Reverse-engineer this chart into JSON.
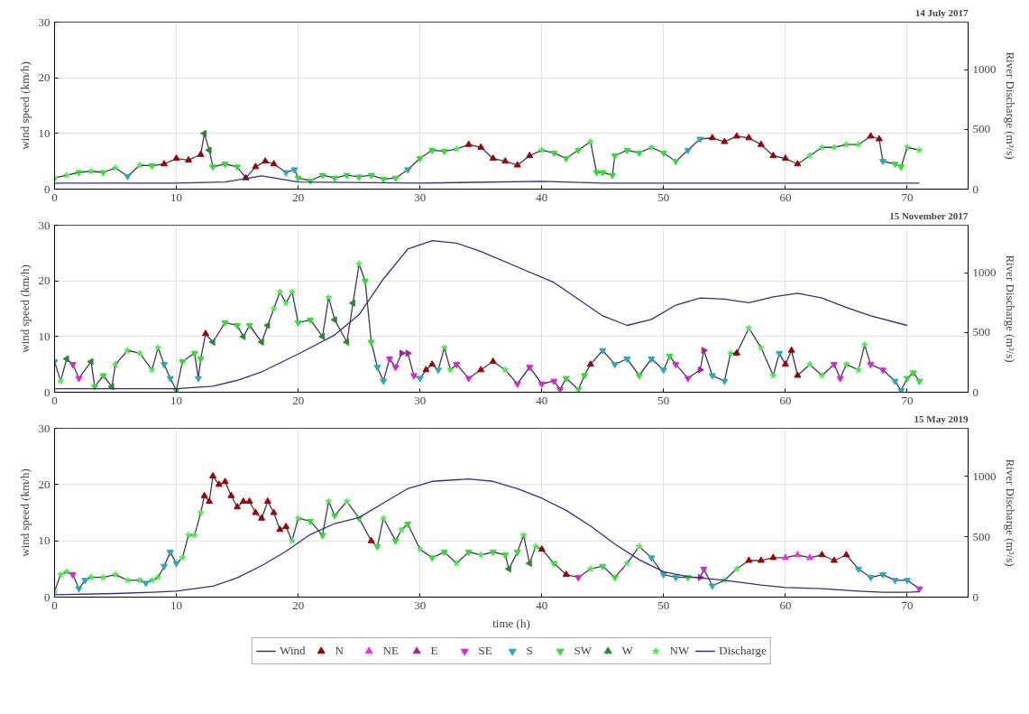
{
  "chart_data": [
    {
      "type": "line",
      "title": "14 July 2017",
      "ylabel": "wind speed (km/h)",
      "y2label": "River Discharge (m³/s)",
      "xlim": [
        0,
        75
      ],
      "xticks": [
        0,
        10,
        20,
        30,
        40,
        50,
        60,
        70
      ],
      "ylim": [
        0,
        30
      ],
      "yticks": [
        0,
        10,
        20,
        30
      ],
      "y2lim": [
        0,
        1400
      ],
      "y2ticks": [
        0,
        500,
        1000
      ],
      "grid": true,
      "series": [
        {
          "type": "line",
          "color": "#3a3a5a",
          "marker": "none",
          "x": [
            0,
            1,
            2,
            3,
            4,
            5,
            6,
            7,
            8,
            9,
            10,
            11,
            12,
            12.3,
            12.7,
            13,
            14,
            15,
            15.7,
            16.5,
            17.3,
            18,
            19,
            19.7,
            20,
            21,
            22,
            23,
            24,
            25,
            26,
            27,
            28,
            29,
            30,
            31,
            32,
            33,
            34,
            35,
            36,
            37,
            38,
            39,
            40,
            41,
            42,
            43,
            44,
            44.5,
            45,
            45.8,
            46,
            47,
            48,
            49,
            50,
            51,
            52,
            53,
            54,
            55,
            56,
            57,
            58,
            59,
            60,
            61,
            62,
            63,
            64,
            65,
            66,
            67,
            67.7,
            68,
            69,
            69.5,
            70,
            71
          ],
          "values": [
            2,
            2.5,
            3,
            3.2,
            3,
            3.8,
            2.3,
            4.3,
            4.2,
            4.5,
            5.5,
            5.2,
            6.2,
            10,
            7,
            4,
            4.5,
            4,
            2,
            4,
            5,
            4.5,
            3,
            3.5,
            2,
            1.5,
            2.5,
            2,
            2.5,
            2.2,
            2.5,
            1.8,
            2,
            3.5,
            5.5,
            7,
            6.8,
            7.2,
            8,
            7.5,
            5.5,
            5,
            4.3,
            6,
            7,
            6.5,
            5.5,
            7,
            8.5,
            3,
            3,
            2.5,
            6,
            7,
            6.5,
            7.5,
            6.5,
            5,
            7,
            9,
            9.2,
            8.5,
            9.5,
            9.2,
            8,
            6,
            5.5,
            4.5,
            6,
            7.5,
            7.5,
            8,
            8,
            9.5,
            9,
            5,
            4.5,
            4,
            7.5,
            7
          ]
        },
        {
          "type": "scatter",
          "color": "#a00000",
          "marker": "triangle",
          "x": [
            9,
            10,
            11,
            12,
            15.7,
            16.5,
            17.3,
            18,
            34,
            35,
            36,
            37,
            38,
            39,
            54,
            55,
            56,
            57,
            58,
            59,
            60,
            61,
            67,
            67.7
          ],
          "values": [
            4.5,
            5.5,
            5.2,
            6.2,
            2,
            4,
            5,
            4.5,
            8,
            7.5,
            5.5,
            5,
            4.3,
            6,
            9.2,
            8.5,
            9.5,
            9.2,
            8,
            6,
            5.5,
            4.5,
            9.5,
            9
          ]
        },
        {
          "type": "scatter",
          "color": "#2aa8b8",
          "marker": "triangle_down",
          "x": [
            6,
            19,
            19.7,
            29,
            52,
            53,
            68
          ],
          "values": [
            2.3,
            3,
            3.5,
            3.5,
            7,
            9,
            5
          ]
        },
        {
          "type": "scatter",
          "color": "#33dd33",
          "marker": "triangle_down",
          "x": [
            2,
            4,
            8,
            13,
            14,
            15,
            20,
            21,
            22,
            23,
            24,
            25,
            26,
            27,
            28,
            30,
            31,
            32,
            41,
            42,
            43,
            44.5,
            45,
            45.8,
            46,
            47,
            48,
            50,
            51,
            69,
            69.5
          ],
          "values": [
            3,
            3,
            4.2,
            4,
            4.5,
            4,
            2,
            1.5,
            2.5,
            2,
            2.5,
            2.2,
            2.5,
            1.8,
            2,
            5.5,
            7,
            6.8,
            6.5,
            5.5,
            7,
            3,
            3,
            2.5,
            6,
            7,
            6.5,
            6.5,
            5,
            4.5,
            4
          ]
        },
        {
          "type": "scatter",
          "color": "#2a8a2a",
          "marker": "triangle_left",
          "x": [
            12.3,
            12.7
          ],
          "values": [
            10,
            7
          ]
        },
        {
          "type": "scatter",
          "color": "#44ee44",
          "marker": "star",
          "x": [
            0,
            1,
            3,
            5,
            7,
            33,
            40,
            44,
            49,
            62,
            63,
            64,
            65,
            66,
            70,
            71
          ],
          "values": [
            2,
            2.5,
            3.2,
            3.8,
            4.3,
            7.2,
            7,
            8.5,
            7.5,
            6,
            7.5,
            7.5,
            8,
            8,
            7.5,
            7
          ]
        },
        {
          "type": "line",
          "color": "#2e2e8a",
          "marker": "none",
          "axis": "y2",
          "x": [
            0,
            10,
            14,
            17,
            20,
            30,
            40,
            45,
            71
          ],
          "values": [
            50,
            50,
            60,
            110,
            60,
            50,
            65,
            50,
            50
          ]
        }
      ]
    },
    {
      "type": "line",
      "title": "15 November 2017",
      "ylabel": "wind speed (km/h)",
      "y2label": "River Discharge (m³/s)",
      "xlim": [
        0,
        75
      ],
      "xticks": [
        0,
        10,
        20,
        30,
        40,
        50,
        60,
        70
      ],
      "ylim": [
        0,
        30
      ],
      "yticks": [
        0,
        10,
        20,
        30
      ],
      "y2lim": [
        0,
        1400
      ],
      "y2ticks": [
        0,
        500,
        1000
      ],
      "grid": true,
      "series": [
        {
          "type": "line",
          "color": "#3a3a5a",
          "marker": "none",
          "x": [
            0,
            0.5,
            1,
            1.5,
            2,
            3,
            3.3,
            4,
            4.7,
            5,
            6,
            7,
            8,
            8.5,
            9,
            9.5,
            10,
            10.5,
            11.5,
            11.8,
            12,
            12.4,
            13,
            14,
            15,
            15.5,
            16,
            17,
            17.5,
            18,
            18.5,
            19,
            19.5,
            20,
            21,
            22,
            22.5,
            23,
            24,
            24.5,
            25,
            25.5,
            26,
            26.5,
            27,
            27.5,
            28,
            28.5,
            29,
            29.5,
            30,
            30.5,
            31,
            31.5,
            32,
            32.5,
            33,
            34,
            35,
            36,
            37,
            38,
            39,
            40,
            41,
            41.5,
            42,
            43,
            43.5,
            44,
            45,
            46,
            47,
            48,
            49,
            50,
            50.5,
            51,
            52,
            53,
            53.3,
            54,
            55,
            55.5,
            56,
            57,
            58,
            59,
            59.5,
            60,
            60.5,
            61,
            62,
            63,
            64,
            64.5,
            65,
            66,
            66.5,
            67,
            68,
            69,
            69.5,
            70,
            70.5,
            71
          ],
          "values": [
            5.5,
            2,
            6,
            5,
            2.5,
            5.5,
            1,
            3,
            1,
            5,
            7.5,
            7,
            4,
            8,
            5,
            2.5,
            0.3,
            5.5,
            7,
            2.5,
            6,
            10.5,
            9,
            12.5,
            12,
            10,
            12,
            9,
            12,
            15,
            18,
            16,
            18,
            12.5,
            13,
            10,
            17,
            13,
            9,
            16,
            23,
            20,
            9,
            4.5,
            2,
            6,
            4.5,
            7,
            7,
            3,
            2.5,
            4,
            5,
            4,
            8,
            4,
            5,
            2.5,
            4,
            5.5,
            4,
            1.5,
            4.5,
            1.5,
            2,
            0.5,
            2.5,
            0.5,
            3,
            5,
            7.5,
            5,
            6,
            3,
            6,
            4,
            6.5,
            5,
            2.5,
            4,
            7.5,
            3,
            2,
            7,
            7,
            11.5,
            8,
            3,
            7,
            5,
            7.5,
            3,
            5,
            3,
            5,
            2.5,
            5,
            4,
            8.5,
            5,
            4,
            2,
            0.3,
            2.5,
            3.5,
            2
          ]
        },
        {
          "type": "scatter",
          "color": "#a00000",
          "marker": "triangle",
          "x": [
            12.4,
            30.5,
            31,
            35,
            36,
            44,
            56,
            60,
            60.5,
            61
          ],
          "values": [
            10.5,
            4,
            5,
            4,
            5.5,
            5,
            7,
            5,
            7.5,
            3
          ]
        },
        {
          "type": "scatter",
          "color": "#b0209a",
          "marker": "triangle_right",
          "x": [
            28.5,
            29,
            53,
            53.3
          ],
          "values": [
            7,
            7,
            4,
            7.5
          ]
        },
        {
          "type": "scatter",
          "color": "#dd22dd",
          "marker": "triangle_down",
          "x": [
            1.5,
            2,
            27.5,
            28,
            29.5,
            33,
            34,
            38,
            39,
            40,
            41,
            41.5,
            51,
            52,
            64,
            64.5,
            67,
            68
          ],
          "values": [
            5,
            2.5,
            6,
            4.5,
            3,
            5,
            2.5,
            1.5,
            4.5,
            1.5,
            2,
            0.5,
            5,
            2.5,
            5,
            2.5,
            5,
            4
          ]
        },
        {
          "type": "scatter",
          "color": "#2aa8b8",
          "marker": "triangle_down",
          "x": [
            0,
            9,
            9.5,
            11.8,
            26.5,
            27,
            30,
            31.5,
            45,
            46,
            47,
            49,
            50,
            54,
            55,
            59.5,
            69,
            69.5
          ],
          "values": [
            5.5,
            5,
            2.5,
            2.5,
            4.5,
            2,
            2.5,
            4,
            7.5,
            5,
            6,
            6,
            4,
            3,
            2,
            7,
            2,
            0.3
          ]
        },
        {
          "type": "scatter",
          "color": "#33dd33",
          "marker": "triangle_down",
          "x": [
            3.3,
            4,
            10,
            10.5,
            11.5,
            12,
            14,
            15,
            16,
            20,
            21,
            25.5,
            26,
            42,
            43,
            43.5,
            48,
            50.5,
            70,
            70.5,
            71
          ],
          "values": [
            1,
            3,
            0.3,
            5.5,
            7,
            6,
            12.5,
            12,
            12,
            12.5,
            13,
            20,
            9,
            2.5,
            0.5,
            3,
            3,
            6.5,
            2.5,
            3.5,
            2
          ]
        },
        {
          "type": "scatter",
          "color": "#2a8a2a",
          "marker": "triangle_left",
          "x": [
            1,
            3,
            4.7,
            13,
            15.5,
            17,
            17.5,
            22,
            23,
            24,
            24.5
          ],
          "values": [
            6,
            5.5,
            1,
            9,
            10,
            9,
            12,
            10,
            13,
            9,
            16
          ]
        },
        {
          "type": "scatter",
          "color": "#44ee44",
          "marker": "star",
          "x": [
            0.5,
            5,
            6,
            7,
            8,
            8.5,
            18,
            18.5,
            19,
            19.5,
            22.5,
            25,
            32,
            32.5,
            37,
            55.5,
            57,
            58,
            59,
            62,
            63,
            65,
            66,
            66.5
          ],
          "values": [
            2,
            5,
            7.5,
            7,
            4,
            8,
            15,
            18,
            16,
            18,
            17,
            23,
            8,
            4,
            4,
            7,
            11.5,
            8,
            3,
            5,
            3,
            5,
            4,
            8.5
          ]
        },
        {
          "type": "line",
          "color": "#2e2e8a",
          "marker": "none",
          "axis": "y2",
          "x": [
            0,
            10,
            13,
            15,
            17,
            20,
            23,
            25,
            27,
            29,
            31,
            33,
            35,
            38,
            41,
            43,
            45,
            47,
            49,
            51,
            53,
            55,
            57,
            59,
            61,
            63,
            65,
            67,
            70
          ],
          "values": [
            30,
            30,
            50,
            100,
            170,
            320,
            480,
            650,
            950,
            1200,
            1270,
            1250,
            1180,
            1050,
            920,
            780,
            640,
            560,
            610,
            730,
            790,
            780,
            750,
            800,
            830,
            790,
            710,
            640,
            560
          ]
        }
      ]
    },
    {
      "type": "line",
      "title": "15 May 2019",
      "xlabel": "time (h)",
      "ylabel": "wind speed (km/h)",
      "y2label": "River Discharge (m³/s)",
      "xlim": [
        0,
        75
      ],
      "xticks": [
        0,
        10,
        20,
        30,
        40,
        50,
        60,
        70
      ],
      "ylim": [
        0,
        30
      ],
      "yticks": [
        0,
        10,
        20,
        30
      ],
      "y2lim": [
        0,
        1400
      ],
      "y2ticks": [
        0,
        500,
        1000
      ],
      "grid": true,
      "legend": "bottom",
      "series": [
        {
          "name": "Wind",
          "type": "line",
          "color": "#3a3a5a",
          "marker": "none",
          "x": [
            0,
            0.5,
            1,
            1.5,
            2,
            2.5,
            3,
            4,
            5,
            6,
            7,
            7.5,
            8,
            8.5,
            9,
            9.5,
            10,
            10.5,
            11,
            11.5,
            12,
            12.3,
            12.7,
            13,
            13.5,
            14,
            14.5,
            15,
            15.5,
            16,
            16.5,
            17,
            17.5,
            18,
            18.5,
            19,
            19.5,
            20,
            21,
            22,
            22.5,
            23,
            24,
            25,
            26,
            26.5,
            27,
            28,
            28.5,
            29,
            30,
            31,
            32,
            33,
            34,
            35,
            36,
            37,
            37.3,
            38,
            38.5,
            39,
            39.5,
            40,
            41,
            42,
            43,
            44,
            45,
            46,
            47,
            48,
            49,
            50,
            51,
            52,
            53,
            53.3,
            54,
            55,
            56,
            57,
            58,
            59,
            60,
            61,
            62,
            63,
            64,
            65,
            66,
            67,
            68,
            69,
            70,
            71
          ],
          "values": [
            1,
            4,
            4.5,
            4,
            1.5,
            3,
            3.5,
            3.5,
            4,
            3,
            3,
            2.5,
            3,
            3.5,
            5.5,
            8,
            6,
            7,
            11,
            11,
            15,
            18,
            17,
            21.5,
            20,
            20.5,
            18,
            16,
            17,
            17,
            15,
            14,
            17,
            15,
            12,
            12.5,
            10,
            14,
            13.5,
            11,
            17,
            14.5,
            17,
            14,
            10,
            9,
            14,
            10,
            12,
            13,
            8.5,
            7,
            8,
            6,
            8,
            7.5,
            8,
            7.5,
            5,
            8,
            11,
            6,
            9,
            8.5,
            6,
            4,
            3.5,
            5,
            5.5,
            3.5,
            6,
            9,
            7,
            4,
            3.5,
            3.5,
            3.5,
            5,
            2,
            3,
            5,
            6.5,
            6.5,
            7,
            7,
            7.5,
            7,
            7.5,
            6.5,
            7.5,
            5,
            3.5,
            4,
            3,
            3,
            1.5
          ]
        },
        {
          "name": "N",
          "type": "scatter",
          "color": "#a00000",
          "marker": "triangle",
          "x": [
            12.3,
            12.7,
            13,
            13.5,
            14,
            14.5,
            15,
            15.5,
            16,
            16.5,
            17,
            17.5,
            18,
            18.5,
            19,
            26,
            40,
            42,
            57,
            58,
            59,
            63,
            64,
            65
          ],
          "values": [
            18,
            17,
            21.5,
            20,
            20.5,
            18,
            16,
            17,
            17,
            15,
            14,
            17,
            15,
            12,
            12.5,
            10,
            8.5,
            4,
            6.5,
            6.5,
            7,
            7.5,
            6.5,
            7.5
          ]
        },
        {
          "name": "NE",
          "type": "scatter",
          "color": "#ee33ee",
          "marker": "triangle",
          "x": [
            60,
            61,
            62
          ],
          "values": [
            7,
            7.5,
            7
          ]
        },
        {
          "name": "E",
          "type": "scatter",
          "color": "#b0209a",
          "marker": "triangle_right",
          "x": [
            53
          ],
          "values": [
            3.5
          ]
        },
        {
          "name": "SE",
          "type": "scatter",
          "color": "#dd22dd",
          "marker": "triangle_down",
          "x": [
            1.5,
            43,
            53.3,
            71
          ],
          "values": [
            4,
            3.5,
            5,
            1.5
          ]
        },
        {
          "name": "S",
          "type": "scatter",
          "color": "#2aa8b8",
          "marker": "triangle_down",
          "x": [
            2,
            2.5,
            7.5,
            9,
            9.5,
            10,
            49,
            50,
            51,
            54,
            66,
            67,
            68,
            69,
            70
          ],
          "values": [
            1.5,
            3,
            2.5,
            5.5,
            8,
            6,
            7,
            4,
            3.5,
            2,
            5,
            3.5,
            4,
            3,
            3
          ]
        },
        {
          "name": "SW",
          "type": "scatter",
          "color": "#33dd33",
          "marker": "triangle_down",
          "x": [
            21,
            22,
            23,
            25,
            26.5,
            28,
            29,
            31,
            32,
            34,
            36,
            37,
            38,
            41,
            45,
            46,
            52
          ],
          "values": [
            13.5,
            11,
            14.5,
            14,
            9,
            10,
            13,
            7,
            8,
            8,
            8,
            7.5,
            8,
            6,
            5.5,
            3.5,
            3.5
          ]
        },
        {
          "name": "W",
          "type": "scatter",
          "color": "#2a8a2a",
          "marker": "triangle_left",
          "x": [
            37.3,
            39
          ],
          "values": [
            5,
            6
          ]
        },
        {
          "name": "NW",
          "type": "scatter",
          "color": "#44ee44",
          "marker": "star",
          "x": [
            0,
            0.5,
            1,
            3,
            4,
            5,
            6,
            7,
            8,
            8.5,
            10.5,
            11,
            11.5,
            12,
            19.5,
            20,
            22.5,
            24,
            27,
            28.5,
            30,
            33,
            35,
            38.5,
            39.5,
            44,
            47,
            48,
            55,
            56
          ],
          "values": [
            1,
            4,
            4.5,
            3.5,
            3.5,
            4,
            3,
            3,
            3,
            3.5,
            7,
            11,
            11,
            15,
            10,
            14,
            17,
            17,
            14,
            12,
            8.5,
            6,
            7.5,
            11,
            9,
            5,
            6,
            9,
            3,
            5
          ]
        },
        {
          "name": "Discharge",
          "type": "line",
          "color": "#2e2e8a",
          "marker": "none",
          "axis": "y2",
          "x": [
            0,
            5,
            8,
            10,
            13,
            15,
            17,
            19,
            21,
            23,
            25,
            27,
            29,
            31,
            34,
            36,
            38,
            40,
            42,
            44,
            46,
            48,
            50,
            52,
            55,
            58,
            60,
            63,
            66,
            68,
            70,
            71
          ],
          "values": [
            20,
            30,
            40,
            50,
            90,
            160,
            260,
            380,
            520,
            610,
            660,
            780,
            900,
            960,
            980,
            960,
            900,
            820,
            720,
            590,
            440,
            310,
            210,
            170,
            140,
            100,
            80,
            70,
            50,
            40,
            40,
            45
          ]
        }
      ]
    }
  ]
}
